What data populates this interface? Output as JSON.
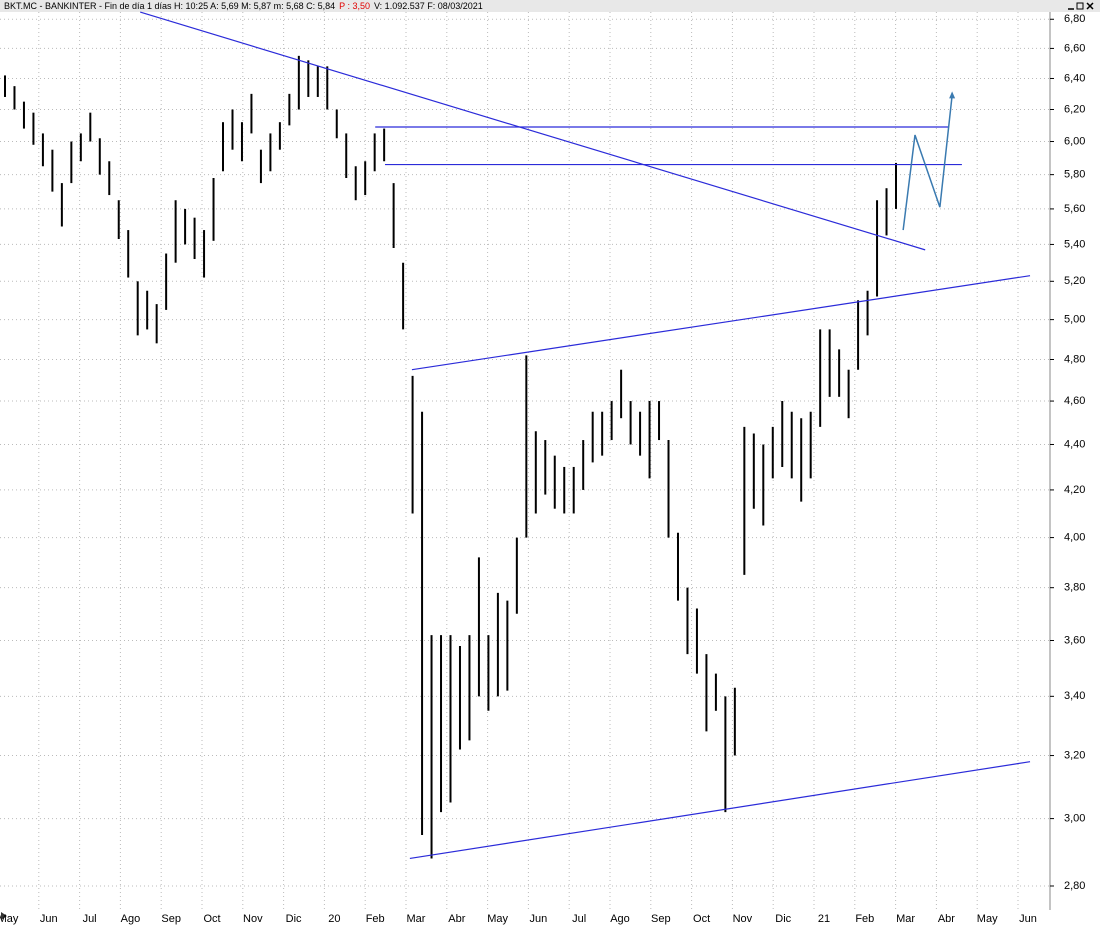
{
  "chart_data": {
    "type": "ohlc",
    "header": [
      "BKT.MC - BANKINTER - Fin de día 1 días H: 10:25 A: 5,69 M: 5,87 m: 5,68 C: 5,84",
      "P : 3,50",
      "V: 1.092.537 F: 08/03/2021"
    ],
    "header_colors": [
      "#000000",
      "#e00000",
      "#000000"
    ],
    "categories": [
      "May",
      "Jun",
      "Jul",
      "Ago",
      "Sep",
      "Oct",
      "Nov",
      "Dic",
      "20",
      "Feb",
      "Mar",
      "Abr",
      "May",
      "Jun",
      "Jul",
      "Ago",
      "Sep",
      "Oct",
      "Nov",
      "Dic",
      "21",
      "Feb",
      "Mar",
      "Abr",
      "May",
      "Jun"
    ],
    "high": [
      6.42,
      6.35,
      6.25,
      6.18,
      6.05,
      5.95,
      5.75,
      6.0,
      6.05,
      6.18,
      6.02,
      5.88,
      5.65,
      5.48,
      5.2,
      5.15,
      5.08,
      5.35,
      5.65,
      5.6,
      5.55,
      5.48,
      5.78,
      6.12,
      6.2,
      6.12,
      6.3,
      5.95,
      6.05,
      6.12,
      6.3,
      6.55,
      6.52,
      6.48,
      6.48,
      6.2,
      6.05,
      5.85,
      5.88,
      6.05,
      6.08,
      5.75,
      5.3,
      4.72,
      4.55,
      3.62,
      3.62,
      3.62,
      3.58,
      3.62,
      3.92,
      3.62,
      3.78,
      3.75,
      4.0,
      4.82,
      4.46,
      4.42,
      4.35,
      4.3,
      4.3,
      4.42,
      4.55,
      4.55,
      4.6,
      4.75,
      4.6,
      4.55,
      4.6,
      4.6,
      4.42,
      4.02,
      3.8,
      3.72,
      3.55,
      3.48,
      3.4,
      3.43,
      4.48,
      4.45,
      4.4,
      4.48,
      4.6,
      4.55,
      4.52,
      4.55,
      4.95,
      4.95,
      4.85,
      4.75,
      5.1,
      5.15,
      5.65,
      5.72,
      5.87
    ],
    "low": [
      6.28,
      6.2,
      6.08,
      5.98,
      5.85,
      5.7,
      5.5,
      5.75,
      5.88,
      6.0,
      5.8,
      5.68,
      5.43,
      5.22,
      4.92,
      4.95,
      4.88,
      5.05,
      5.3,
      5.4,
      5.32,
      5.22,
      5.42,
      5.82,
      5.95,
      5.88,
      6.05,
      5.75,
      5.82,
      5.95,
      6.1,
      6.2,
      6.28,
      6.28,
      6.2,
      6.02,
      5.78,
      5.65,
      5.68,
      5.82,
      5.88,
      5.38,
      4.95,
      4.1,
      2.95,
      2.88,
      3.02,
      3.05,
      3.22,
      3.25,
      3.4,
      3.35,
      3.4,
      3.42,
      3.7,
      4.0,
      4.1,
      4.18,
      4.12,
      4.1,
      4.1,
      4.2,
      4.32,
      4.35,
      4.42,
      4.52,
      4.4,
      4.35,
      4.25,
      4.42,
      4.0,
      3.75,
      3.55,
      3.48,
      3.28,
      3.35,
      3.02,
      3.2,
      3.85,
      4.12,
      4.05,
      4.25,
      4.3,
      4.25,
      4.15,
      4.25,
      4.48,
      4.62,
      4.62,
      4.52,
      4.75,
      4.92,
      5.12,
      5.45,
      5.6
    ],
    "color": "#000000",
    "log": true,
    "grid": true,
    "ylim": [
      2.732,
      6.9
    ],
    "yticks": [
      {
        "value": 2.8,
        "label": "2,80"
      },
      {
        "value": 3.0,
        "label": "3,00"
      },
      {
        "value": 3.2,
        "label": "3,20"
      },
      {
        "value": 3.4,
        "label": "3,40"
      },
      {
        "value": 3.6,
        "label": "3,60"
      },
      {
        "value": 3.8,
        "label": "3,80"
      },
      {
        "value": 4.0,
        "label": "4,00"
      },
      {
        "value": 4.2,
        "label": "4,20"
      },
      {
        "value": 4.4,
        "label": "4,40"
      },
      {
        "value": 4.6,
        "label": "4,60"
      },
      {
        "value": 4.8,
        "label": "4,80"
      },
      {
        "value": 5.0,
        "label": "5,00"
      },
      {
        "value": 5.2,
        "label": "5,20"
      },
      {
        "value": 5.4,
        "label": "5,40"
      },
      {
        "value": 5.6,
        "label": "5,60"
      },
      {
        "value": 5.8,
        "label": "5,80"
      },
      {
        "value": 6.0,
        "label": "6,00"
      },
      {
        "value": 6.2,
        "label": "6,20"
      },
      {
        "value": 6.4,
        "label": "6,40"
      },
      {
        "value": 6.6,
        "label": "6,60"
      },
      {
        "value": 6.8,
        "label": "6,80"
      }
    ],
    "lines": [
      {
        "x": [
          3.24,
          22.48
        ],
        "y": [
          6.85,
          5.37
        ],
        "color": "#2b2bd9"
      },
      {
        "x": [
          9.0,
          23.04
        ],
        "y": [
          6.09,
          6.09
        ],
        "color": "#2b2bd9"
      },
      {
        "x": [
          9.24,
          23.38
        ],
        "y": [
          5.86,
          5.86
        ],
        "color": "#2b2bd9"
      },
      {
        "x": [
          9.9,
          25.05
        ],
        "y": [
          4.75,
          5.23
        ],
        "color": "#2b2bd9"
      },
      {
        "x": [
          9.85,
          25.05
        ],
        "y": [
          2.88,
          3.18
        ],
        "color": "#2b2bd9"
      }
    ],
    "projection": {
      "x": [
        21.94,
        22.23,
        22.84,
        23.14
      ],
      "y": [
        5.48,
        6.04,
        5.61,
        6.29
      ],
      "color": "#3a7ab0"
    }
  }
}
